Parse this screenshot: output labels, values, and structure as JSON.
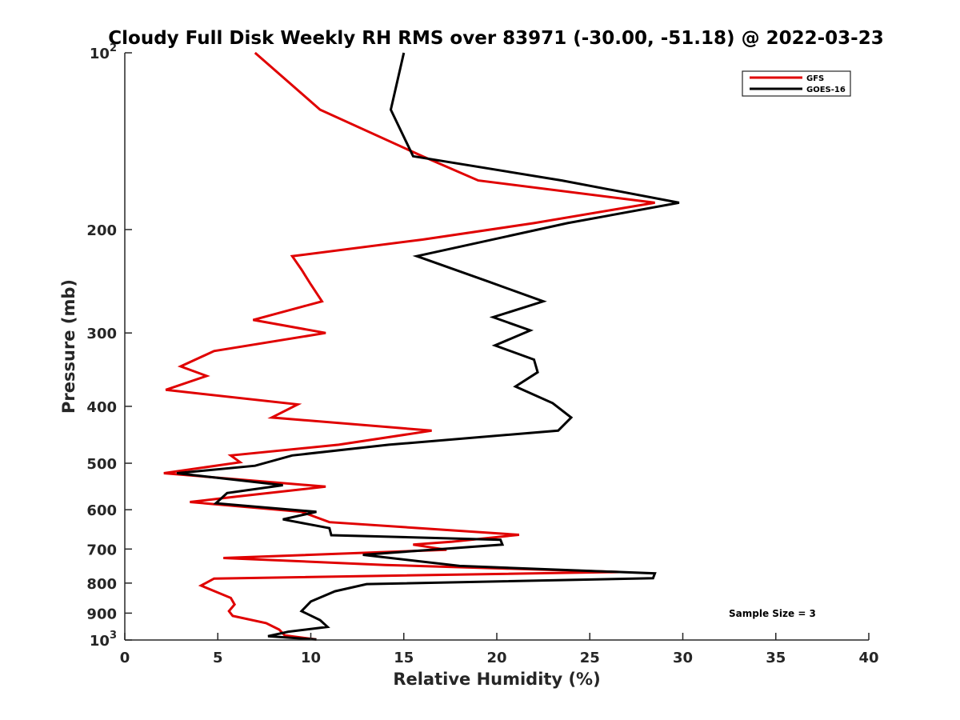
{
  "chart_data": {
    "type": "line",
    "title": "Cloudy Full Disk Weekly RH RMS over 83971 (-30.00, -51.18) @ 2022-03-23",
    "xlabel": "Relative Humidity (%)",
    "ylabel": "Pressure (mb)",
    "xlim": [
      0,
      40
    ],
    "ylim": [
      100,
      1000
    ],
    "y_scale": "log",
    "y_reversed": true,
    "grid": false,
    "legend_position": "top-right",
    "x_ticks": [
      "0",
      "5",
      "10",
      "15",
      "20",
      "25",
      "30",
      "35",
      "40"
    ],
    "y_ticks": [
      {
        "value": 100,
        "base": "10",
        "exp": "2"
      },
      {
        "value": 200,
        "label": "200"
      },
      {
        "value": 300,
        "label": "300"
      },
      {
        "value": 400,
        "label": "400"
      },
      {
        "value": 500,
        "label": "500"
      },
      {
        "value": 600,
        "label": "600"
      },
      {
        "value": 700,
        "label": "700"
      },
      {
        "value": 800,
        "label": "800"
      },
      {
        "value": 900,
        "label": "900"
      },
      {
        "value": 1000,
        "base": "10",
        "exp": "3"
      }
    ],
    "series": [
      {
        "name": "GFS",
        "color": "#e00000",
        "points": [
          [
            7.0,
            100
          ],
          [
            10.5,
            125
          ],
          [
            16.0,
            150
          ],
          [
            19.0,
            165
          ],
          [
            28.5,
            180
          ],
          [
            22.0,
            195
          ],
          [
            16.0,
            208
          ],
          [
            9.0,
            222
          ],
          [
            9.5,
            234
          ],
          [
            10.0,
            248
          ],
          [
            10.6,
            265
          ],
          [
            6.9,
            285
          ],
          [
            10.8,
            300
          ],
          [
            4.8,
            322
          ],
          [
            3.0,
            342
          ],
          [
            4.4,
            355
          ],
          [
            2.2,
            375
          ],
          [
            9.3,
            397
          ],
          [
            7.9,
            418
          ],
          [
            16.5,
            440
          ],
          [
            11.5,
            465
          ],
          [
            5.7,
            485
          ],
          [
            6.2,
            498
          ],
          [
            2.1,
            520
          ],
          [
            10.8,
            548
          ],
          [
            6.0,
            570
          ],
          [
            3.5,
            582
          ],
          [
            9.5,
            605
          ],
          [
            11.0,
            630
          ],
          [
            21.2,
            662
          ],
          [
            17.6,
            680
          ],
          [
            15.5,
            688
          ],
          [
            17.3,
            702
          ],
          [
            5.3,
            725
          ],
          [
            14.0,
            745
          ],
          [
            26.6,
            766
          ],
          [
            4.8,
            786
          ],
          [
            4.1,
            808
          ],
          [
            5.7,
            848
          ],
          [
            5.9,
            870
          ],
          [
            5.6,
            893
          ],
          [
            5.8,
            910
          ],
          [
            7.6,
            936
          ],
          [
            8.3,
            960
          ],
          [
            8.6,
            982
          ],
          [
            10.3,
            998
          ]
        ]
      },
      {
        "name": "GOES-16",
        "color": "#000000",
        "points": [
          [
            15.0,
            100
          ],
          [
            14.3,
            125
          ],
          [
            15.5,
            150
          ],
          [
            23.5,
            165
          ],
          [
            29.8,
            180
          ],
          [
            23.8,
            195
          ],
          [
            15.7,
            222
          ],
          [
            19.5,
            245
          ],
          [
            22.5,
            265
          ],
          [
            19.8,
            282
          ],
          [
            21.8,
            297
          ],
          [
            19.9,
            315
          ],
          [
            22.0,
            333
          ],
          [
            22.2,
            350
          ],
          [
            21.0,
            370
          ],
          [
            23.0,
            395
          ],
          [
            24.0,
            418
          ],
          [
            23.3,
            440
          ],
          [
            14.2,
            465
          ],
          [
            9.0,
            485
          ],
          [
            7.0,
            505
          ],
          [
            2.8,
            520
          ],
          [
            8.5,
            545
          ],
          [
            5.5,
            562
          ],
          [
            4.9,
            585
          ],
          [
            10.3,
            605
          ],
          [
            8.5,
            623
          ],
          [
            11.0,
            645
          ],
          [
            11.1,
            663
          ],
          [
            20.2,
            675
          ],
          [
            20.3,
            688
          ],
          [
            12.8,
            716
          ],
          [
            18.0,
            748
          ],
          [
            28.5,
            770
          ],
          [
            28.4,
            785
          ],
          [
            13.0,
            803
          ],
          [
            11.3,
            826
          ],
          [
            10.0,
            860
          ],
          [
            9.5,
            893
          ],
          [
            10.5,
            925
          ],
          [
            10.9,
            950
          ],
          [
            8.8,
            968
          ],
          [
            7.7,
            985
          ],
          [
            10.3,
            998
          ]
        ]
      }
    ],
    "legend": [
      {
        "name": "GFS",
        "color": "#e00000"
      },
      {
        "name": "GOES-16",
        "color": "#000000"
      }
    ],
    "annotations": [
      {
        "text": "Sample Size = 3"
      }
    ]
  }
}
